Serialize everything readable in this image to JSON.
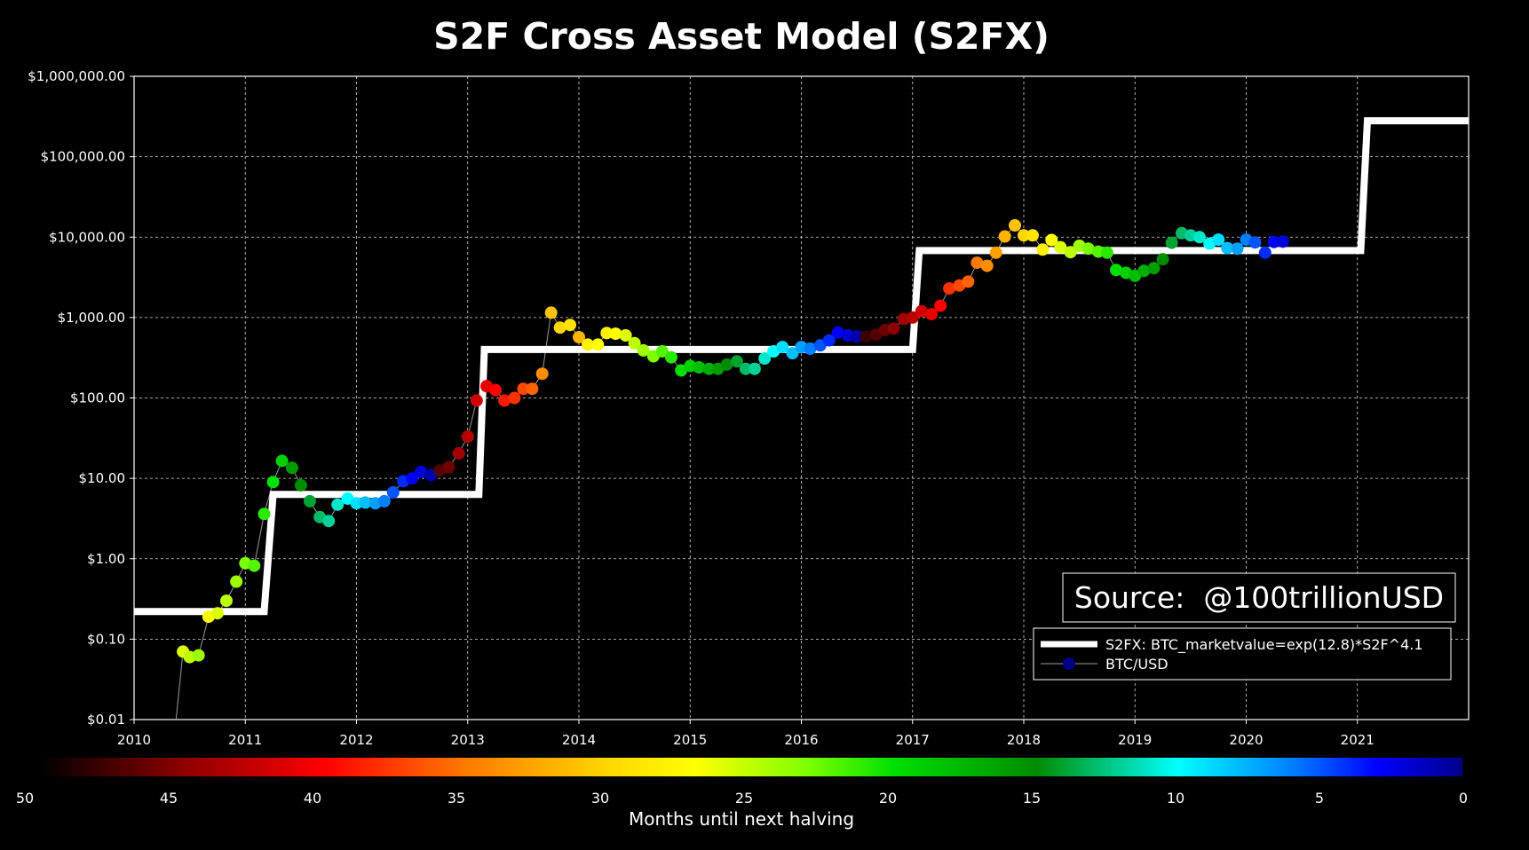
{
  "chart_data": {
    "type": "scatter",
    "title": "S2F Cross Asset Model (S2FX)",
    "xlabel": "",
    "ylabel": "",
    "xlim": [
      2010,
      2022
    ],
    "ylim": [
      0.01,
      1000000
    ],
    "y_scale": "log",
    "grid": true,
    "x_ticks": [
      2010,
      2011,
      2012,
      2013,
      2014,
      2015,
      2016,
      2017,
      2018,
      2019,
      2020,
      2021
    ],
    "x_tick_labels": [
      "2010",
      "2011",
      "2012",
      "2013",
      "2014",
      "2015",
      "2016",
      "2017",
      "2018",
      "2019",
      "2020",
      "2021"
    ],
    "y_ticks": [
      0.01,
      0.1,
      1,
      10,
      100,
      1000,
      10000,
      100000,
      1000000
    ],
    "y_tick_labels": [
      "$0.01",
      "$0.10",
      "$1.00",
      "$10.00",
      "$100.00",
      "$1,000.00",
      "$10,000.00",
      "$100,000.00",
      "$1,000,000.00"
    ],
    "source_text": "Source:  @100trillionUSD",
    "legend": {
      "position": "lower-right",
      "entries": [
        {
          "label": "S2FX: BTC_marketvalue=exp(12.8)*S2F^4.1",
          "kind": "line",
          "color": "#ffffff"
        },
        {
          "label": "BTC/USD",
          "kind": "marker",
          "color": "#00008b"
        }
      ]
    },
    "model_series": {
      "name": "S2FX: BTC_marketvalue=exp(12.8)*S2F^4.1",
      "color": "#ffffff",
      "x": [
        2010.0,
        2011.17,
        2011.25,
        2013.1,
        2013.15,
        2017.0,
        2017.06,
        2021.03,
        2021.09,
        2022.0
      ],
      "y": [
        0.22,
        0.22,
        6.3,
        6.3,
        400,
        400,
        6800,
        6800,
        280000,
        280000
      ]
    },
    "series": [
      {
        "name": "BTC/USD",
        "tooltip_note": "point color = months until next halving",
        "x": [
          2010.44,
          2010.5,
          2010.58,
          2010.67,
          2010.75,
          2010.83,
          2010.92,
          2011.0,
          2011.08,
          2011.17,
          2011.25,
          2011.33,
          2011.42,
          2011.5,
          2011.58,
          2011.67,
          2011.75,
          2011.83,
          2011.92,
          2012.0,
          2012.08,
          2012.17,
          2012.25,
          2012.33,
          2012.42,
          2012.5,
          2012.58,
          2012.67,
          2012.75,
          2012.83,
          2012.92,
          2013.0,
          2013.08,
          2013.17,
          2013.25,
          2013.33,
          2013.42,
          2013.5,
          2013.58,
          2013.67,
          2013.75,
          2013.83,
          2013.92,
          2014.0,
          2014.08,
          2014.17,
          2014.25,
          2014.33,
          2014.42,
          2014.5,
          2014.58,
          2014.67,
          2014.75,
          2014.83,
          2014.92,
          2015.0,
          2015.08,
          2015.17,
          2015.25,
          2015.33,
          2015.42,
          2015.5,
          2015.58,
          2015.67,
          2015.75,
          2015.83,
          2015.92,
          2016.0,
          2016.08,
          2016.17,
          2016.25,
          2016.33,
          2016.42,
          2016.5,
          2016.58,
          2016.67,
          2016.75,
          2016.83,
          2016.92,
          2017.0,
          2017.08,
          2017.17,
          2017.25,
          2017.33,
          2017.42,
          2017.5,
          2017.58,
          2017.67,
          2017.75,
          2017.83,
          2017.92,
          2018.0,
          2018.08,
          2018.17,
          2018.25,
          2018.33,
          2018.42,
          2018.5,
          2018.58,
          2018.67,
          2018.75,
          2018.83,
          2018.92,
          2019.0,
          2019.08,
          2019.17,
          2019.25,
          2019.33,
          2019.42,
          2019.5,
          2019.58,
          2019.67,
          2019.75,
          2019.83,
          2019.92,
          2020.0,
          2020.08,
          2020.17,
          2020.25,
          2020.33
        ],
        "y": [
          0.07,
          0.06,
          0.063,
          0.19,
          0.21,
          0.3,
          0.52,
          0.88,
          0.82,
          3.6,
          9.0,
          16.5,
          13.5,
          8.2,
          5.2,
          3.3,
          2.95,
          4.7,
          5.6,
          4.9,
          5.0,
          4.9,
          5.2,
          6.7,
          9.2,
          10.0,
          12.0,
          11.0,
          12.5,
          13.8,
          20.5,
          33,
          93,
          140,
          125,
          93,
          100,
          130,
          130,
          200,
          1150,
          750,
          810,
          570,
          460,
          460,
          640,
          630,
          600,
          480,
          390,
          330,
          380,
          320,
          220,
          250,
          240,
          230,
          230,
          260,
          285,
          230,
          230,
          310,
          380,
          430,
          360,
          430,
          410,
          450,
          520,
          650,
          600,
          580,
          580,
          610,
          700,
          730,
          960,
          1000,
          1200,
          1100,
          1400,
          2300,
          2500,
          2800,
          4800,
          4400,
          6400,
          10200,
          14000,
          10500,
          10500,
          7000,
          9200,
          7500,
          6500,
          7800,
          7200,
          6600,
          6400,
          3900,
          3600,
          3300,
          3800,
          4100,
          5300,
          8500,
          11200,
          10500,
          10000,
          8300,
          9300,
          7300,
          7200,
          9300,
          8600,
          6400,
          8700,
          8800
        ],
        "months_until_halving": [
          26,
          25,
          24,
          27,
          26,
          25,
          24,
          23,
          22,
          21,
          20,
          19,
          16,
          15,
          14,
          13,
          12,
          11,
          10,
          9,
          8,
          7,
          6,
          5,
          4,
          3,
          2,
          1,
          47,
          46,
          44,
          43,
          42,
          41,
          40,
          39,
          38,
          37,
          36,
          34,
          31,
          30,
          29,
          32,
          28,
          27,
          28,
          27,
          26,
          25,
          24,
          23,
          22,
          21,
          20,
          19,
          18,
          17,
          16,
          15,
          14,
          13,
          12,
          11,
          10,
          9,
          8,
          7,
          6,
          5,
          4,
          3,
          2,
          1,
          48,
          47,
          46,
          45,
          44,
          43,
          42,
          41,
          40,
          38,
          37,
          36,
          35,
          34,
          33,
          32,
          31,
          30,
          29,
          28,
          27,
          26,
          25,
          24,
          23,
          22,
          21,
          20,
          19,
          18,
          17,
          16,
          15,
          14,
          13,
          12,
          11,
          10,
          9,
          8,
          7,
          6,
          5,
          4,
          3,
          2
        ]
      }
    ],
    "colorbar": {
      "label": "Months until next halving",
      "min": 0,
      "max": 50,
      "tick_values": [
        50,
        45,
        40,
        35,
        30,
        25,
        20,
        15,
        10,
        5,
        0
      ],
      "tick_labels": [
        "50",
        "45",
        "40",
        "35",
        "30",
        "25",
        "20",
        "15",
        "10",
        "5",
        "0"
      ],
      "stops": [
        {
          "value": 50,
          "color": "#000000"
        },
        {
          "value": 45,
          "color": "#8b0000"
        },
        {
          "value": 40,
          "color": "#ff0000"
        },
        {
          "value": 35,
          "color": "#ff7a00"
        },
        {
          "value": 30,
          "color": "#ffd700"
        },
        {
          "value": 27,
          "color": "#ffff00"
        },
        {
          "value": 23,
          "color": "#7cff00"
        },
        {
          "value": 20,
          "color": "#00e000"
        },
        {
          "value": 15,
          "color": "#008c00"
        },
        {
          "value": 10,
          "color": "#00ffff"
        },
        {
          "value": 6,
          "color": "#0080ff"
        },
        {
          "value": 3,
          "color": "#0000ff"
        },
        {
          "value": 0,
          "color": "#00008b"
        }
      ]
    }
  }
}
